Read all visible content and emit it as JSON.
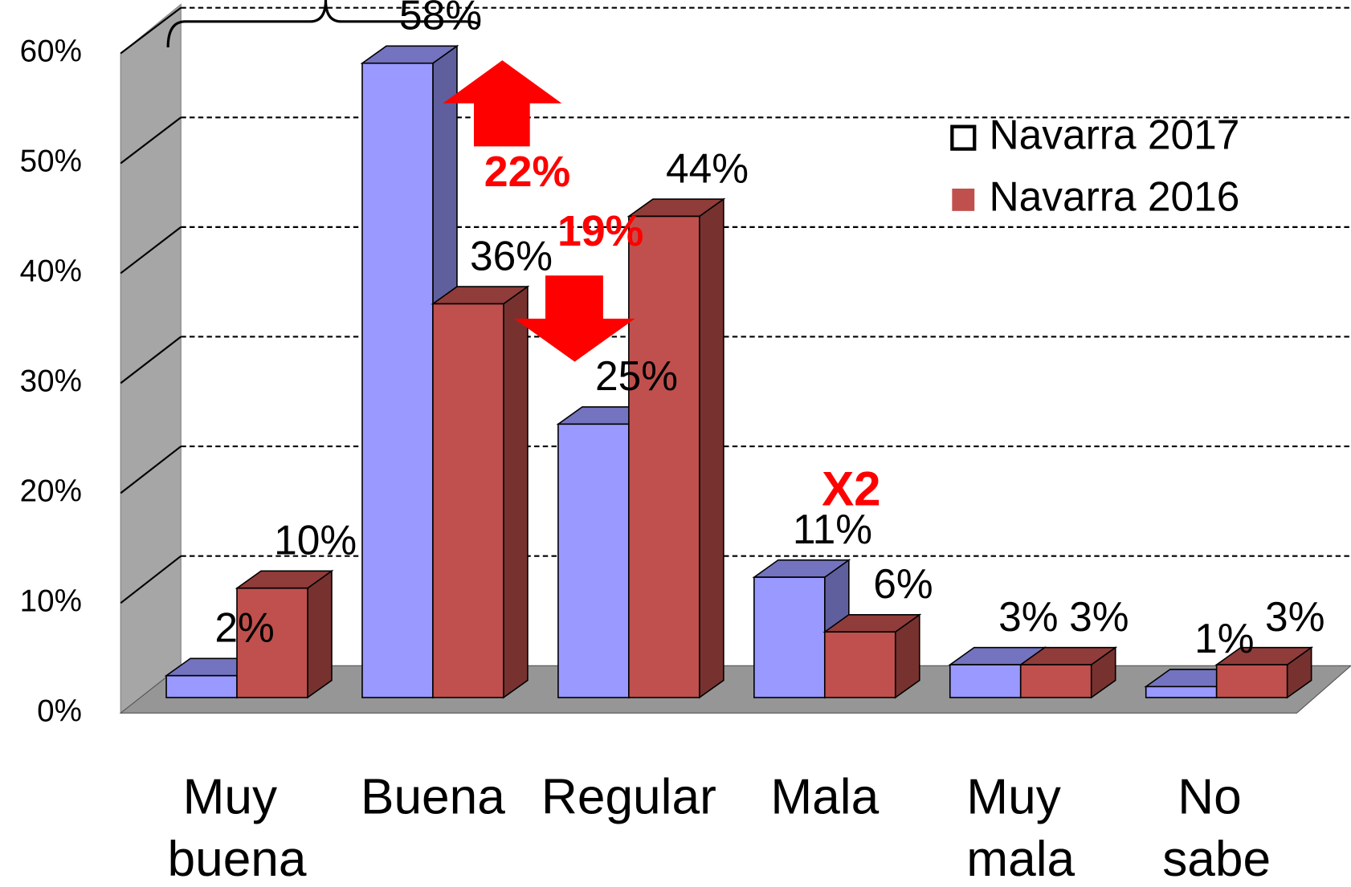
{
  "chart_data": {
    "type": "bar3d",
    "categories": [
      "Muy buena",
      "Buena",
      "Regular",
      "Mala",
      "Muy mala",
      "No sabe"
    ],
    "series": [
      {
        "name": "Navarra 2017",
        "color": "#9999ff",
        "values": [
          2,
          58,
          25,
          11,
          3,
          1
        ],
        "value_labels": [
          "2%",
          "58%",
          "25%",
          "11%",
          "3%",
          "1%"
        ]
      },
      {
        "name": "Navarra 2016",
        "color": "#c0504d",
        "values": [
          10,
          36,
          44,
          6,
          3,
          3
        ],
        "value_labels": [
          "10%",
          "36%",
          "44%",
          "6%",
          "3%",
          "3%"
        ]
      }
    ],
    "ylim": [
      0,
      60
    ],
    "yticks": [
      {
        "value": 0,
        "label": "0%"
      },
      {
        "value": 10,
        "label": "10%"
      },
      {
        "value": 20,
        "label": "20%"
      },
      {
        "value": 30,
        "label": "30%"
      },
      {
        "value": 40,
        "label": "40%"
      },
      {
        "value": 50,
        "label": "50%"
      },
      {
        "value": 60,
        "label": "60%"
      }
    ],
    "grid": true,
    "legend": "upper right",
    "annotations": [
      "22%",
      "19%",
      "X2"
    ]
  }
}
